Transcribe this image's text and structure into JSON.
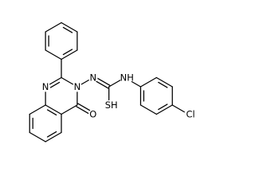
{
  "labels": [
    "N",
    "N",
    "O",
    "N",
    "NH",
    "SH",
    "Cl"
  ]
}
